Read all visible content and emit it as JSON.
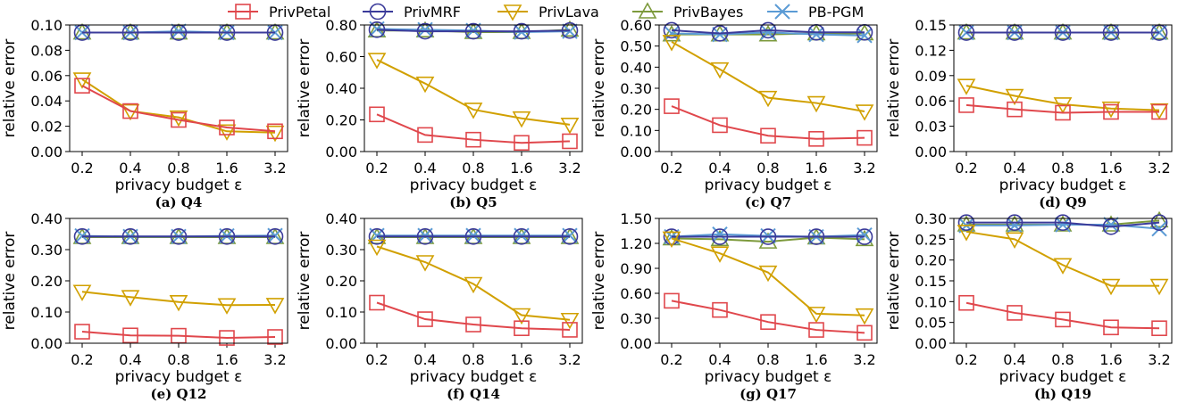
{
  "legend": {
    "entries": [
      {
        "name": "PrivPetal",
        "color": "#e0474c",
        "marker": "square"
      },
      {
        "name": "PrivMRF",
        "color": "#3b3b9a",
        "marker": "circle"
      },
      {
        "name": "PrivLava",
        "color": "#d1a000",
        "marker": "triangle-down"
      },
      {
        "name": "PrivBayes",
        "color": "#7d9a3c",
        "marker": "triangle-up"
      },
      {
        "name": "PB-PGM",
        "color": "#5b9bd5",
        "marker": "x"
      }
    ]
  },
  "chart_data": [
    {
      "type": "line",
      "caption": "(a) Q4",
      "categories": [
        "0.2",
        "0.4",
        "0.8",
        "1.6",
        "3.2"
      ],
      "xlabel": "privacy budget ε",
      "ylabel": "relative error",
      "ylim": [
        0,
        0.1
      ],
      "yticks": [
        "0.00",
        "0.02",
        "0.04",
        "0.06",
        "0.08",
        "0.10"
      ],
      "series": [
        {
          "name": "PrivPetal",
          "values": [
            0.052,
            0.032,
            0.025,
            0.019,
            0.016
          ]
        },
        {
          "name": "PrivMRF",
          "values": [
            0.094,
            0.094,
            0.094,
            0.094,
            0.094
          ]
        },
        {
          "name": "PrivLava",
          "values": [
            0.057,
            0.032,
            0.027,
            0.016,
            0.015
          ]
        },
        {
          "name": "PrivBayes",
          "values": [
            0.094,
            0.094,
            0.094,
            0.094,
            0.094
          ]
        },
        {
          "name": "PB-PGM",
          "values": [
            0.094,
            0.094,
            0.095,
            0.094,
            0.094
          ]
        }
      ]
    },
    {
      "type": "line",
      "caption": "(b) Q5",
      "categories": [
        "0.2",
        "0.4",
        "0.8",
        "1.6",
        "3.2"
      ],
      "xlabel": "privacy budget ε",
      "ylabel": "relative error",
      "ylim": [
        0,
        0.8
      ],
      "yticks": [
        "0.00",
        "0.20",
        "0.40",
        "0.60",
        "0.80"
      ],
      "series": [
        {
          "name": "PrivPetal",
          "values": [
            0.235,
            0.105,
            0.075,
            0.055,
            0.065
          ]
        },
        {
          "name": "PrivMRF",
          "values": [
            0.77,
            0.76,
            0.76,
            0.76,
            0.765
          ]
        },
        {
          "name": "PrivLava",
          "values": [
            0.58,
            0.43,
            0.265,
            0.21,
            0.17
          ]
        },
        {
          "name": "PrivBayes",
          "values": [
            0.765,
            0.765,
            0.755,
            0.755,
            0.77
          ]
        },
        {
          "name": "PB-PGM",
          "values": [
            0.775,
            0.77,
            0.765,
            0.755,
            0.76
          ]
        }
      ]
    },
    {
      "type": "line",
      "caption": "(c) Q7",
      "categories": [
        "0.2",
        "0.4",
        "0.8",
        "1.6",
        "3.2"
      ],
      "xlabel": "privacy budget ε",
      "ylabel": "relative error",
      "ylim": [
        0,
        0.6
      ],
      "yticks": [
        "0.00",
        "0.10",
        "0.20",
        "0.30",
        "0.40",
        "0.50",
        "0.60"
      ],
      "series": [
        {
          "name": "PrivPetal",
          "values": [
            0.215,
            0.125,
            0.075,
            0.06,
            0.065
          ]
        },
        {
          "name": "PrivMRF",
          "values": [
            0.575,
            0.56,
            0.575,
            0.565,
            0.565
          ]
        },
        {
          "name": "PrivLava",
          "values": [
            0.52,
            0.39,
            0.255,
            0.23,
            0.19
          ]
        },
        {
          "name": "PrivBayes",
          "values": [
            0.555,
            0.555,
            0.555,
            0.56,
            0.56
          ]
        },
        {
          "name": "PB-PGM",
          "values": [
            0.56,
            0.555,
            0.565,
            0.555,
            0.55
          ]
        }
      ]
    },
    {
      "type": "line",
      "caption": "(d) Q9",
      "categories": [
        "0.2",
        "0.4",
        "0.8",
        "1.6",
        "3.2"
      ],
      "xlabel": "privacy budget ε",
      "ylabel": "relative error",
      "ylim": [
        0,
        0.15
      ],
      "yticks": [
        "0.00",
        "0.03",
        "0.06",
        "0.09",
        "0.12",
        "0.15"
      ],
      "series": [
        {
          "name": "PrivPetal",
          "values": [
            0.055,
            0.05,
            0.046,
            0.047,
            0.047
          ]
        },
        {
          "name": "PrivMRF",
          "values": [
            0.141,
            0.141,
            0.141,
            0.141,
            0.141
          ]
        },
        {
          "name": "PrivLava",
          "values": [
            0.078,
            0.066,
            0.056,
            0.051,
            0.049
          ]
        },
        {
          "name": "PrivBayes",
          "values": [
            0.141,
            0.141,
            0.141,
            0.141,
            0.141
          ]
        },
        {
          "name": "PB-PGM",
          "values": [
            0.141,
            0.141,
            0.141,
            0.141,
            0.141
          ]
        }
      ]
    },
    {
      "type": "line",
      "caption": "(e) Q12",
      "categories": [
        "0.2",
        "0.4",
        "0.8",
        "1.6",
        "3.2"
      ],
      "xlabel": "privacy budget ε",
      "ylabel": "relative error",
      "ylim": [
        0,
        0.4
      ],
      "yticks": [
        "0.00",
        "0.10",
        "0.20",
        "0.30",
        "0.40"
      ],
      "series": [
        {
          "name": "PrivPetal",
          "values": [
            0.037,
            0.025,
            0.024,
            0.017,
            0.02
          ]
        },
        {
          "name": "PrivMRF",
          "values": [
            0.342,
            0.342,
            0.342,
            0.342,
            0.342
          ]
        },
        {
          "name": "PrivLava",
          "values": [
            0.165,
            0.148,
            0.132,
            0.122,
            0.123
          ]
        },
        {
          "name": "PrivBayes",
          "values": [
            0.34,
            0.34,
            0.34,
            0.34,
            0.34
          ]
        },
        {
          "name": "PB-PGM",
          "values": [
            0.344,
            0.342,
            0.342,
            0.344,
            0.345
          ]
        }
      ]
    },
    {
      "type": "line",
      "caption": "(f) Q14",
      "categories": [
        "0.2",
        "0.4",
        "0.8",
        "1.6",
        "3.2"
      ],
      "xlabel": "privacy budget ε",
      "ylabel": "relative error",
      "ylim": [
        0,
        0.4
      ],
      "yticks": [
        "0.00",
        "0.10",
        "0.20",
        "0.30",
        "0.40"
      ],
      "series": [
        {
          "name": "PrivPetal",
          "values": [
            0.13,
            0.077,
            0.06,
            0.048,
            0.043
          ]
        },
        {
          "name": "PrivMRF",
          "values": [
            0.342,
            0.342,
            0.342,
            0.342,
            0.342
          ]
        },
        {
          "name": "PrivLava",
          "values": [
            0.31,
            0.26,
            0.19,
            0.09,
            0.075
          ]
        },
        {
          "name": "PrivBayes",
          "values": [
            0.34,
            0.34,
            0.34,
            0.34,
            0.34
          ]
        },
        {
          "name": "PB-PGM",
          "values": [
            0.345,
            0.345,
            0.345,
            0.345,
            0.345
          ]
        }
      ]
    },
    {
      "type": "line",
      "caption": "(g) Q17",
      "categories": [
        "0.2",
        "0.4",
        "0.8",
        "1.6",
        "3.2"
      ],
      "xlabel": "privacy budget ε",
      "ylabel": "relative error",
      "ylim": [
        0,
        1.5
      ],
      "yticks": [
        "0.00",
        "0.30",
        "0.60",
        "0.90",
        "1.20",
        "1.50"
      ],
      "series": [
        {
          "name": "PrivPetal",
          "values": [
            0.51,
            0.4,
            0.255,
            0.16,
            0.125
          ]
        },
        {
          "name": "PrivMRF",
          "values": [
            1.28,
            1.28,
            1.28,
            1.28,
            1.28
          ]
        },
        {
          "name": "PrivLava",
          "values": [
            1.26,
            1.08,
            0.85,
            0.355,
            0.335
          ]
        },
        {
          "name": "PrivBayes",
          "values": [
            1.26,
            1.25,
            1.22,
            1.27,
            1.25
          ]
        },
        {
          "name": "PB-PGM",
          "values": [
            1.28,
            1.31,
            1.29,
            1.28,
            1.3
          ]
        }
      ]
    },
    {
      "type": "line",
      "caption": "(h) Q19",
      "categories": [
        "0.2",
        "0.4",
        "0.8",
        "1.6",
        "3.2"
      ],
      "xlabel": "privacy budget ε",
      "ylabel": "relative error",
      "ylim": [
        0,
        0.3
      ],
      "yticks": [
        "0.00",
        "0.05",
        "0.10",
        "0.15",
        "0.20",
        "0.25",
        "0.30"
      ],
      "series": [
        {
          "name": "PrivPetal",
          "values": [
            0.097,
            0.073,
            0.057,
            0.038,
            0.036
          ]
        },
        {
          "name": "PrivMRF",
          "values": [
            0.29,
            0.29,
            0.29,
            0.28,
            0.29
          ]
        },
        {
          "name": "PrivLava",
          "values": [
            0.268,
            0.25,
            0.188,
            0.138,
            0.138
          ]
        },
        {
          "name": "PrivBayes",
          "values": [
            0.285,
            0.285,
            0.285,
            0.285,
            0.295
          ]
        },
        {
          "name": "PB-PGM",
          "values": [
            0.283,
            0.283,
            0.285,
            0.285,
            0.275
          ]
        }
      ]
    }
  ]
}
